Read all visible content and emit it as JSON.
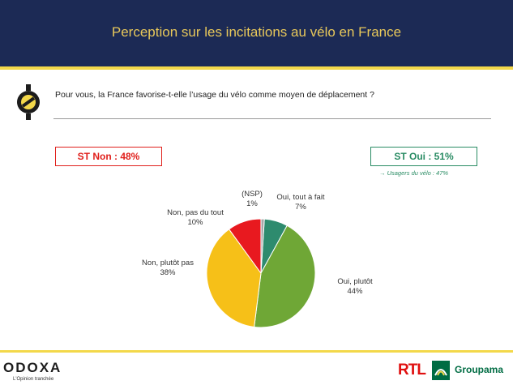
{
  "header": {
    "title": "Perception sur les incitations au vélo en France"
  },
  "question": "Pour vous, la France favorise-t-elle l’usage du vélo comme moyen de déplacement ?",
  "summary": {
    "st_non": "ST Non : 48%",
    "st_oui": "ST Oui : 51%",
    "note": "→ Usagers du vélo : 47%"
  },
  "colors": {
    "header_bg": "#1c2a55",
    "accent": "#f3d84a",
    "non": "#e0201c",
    "oui": "#2a8c64"
  },
  "chart_data": {
    "type": "pie",
    "title": "",
    "slices": [
      {
        "label_lines": [
          "Oui, tout à fait",
          "7%"
        ],
        "value": 7,
        "color": "#2e8b6e"
      },
      {
        "label_lines": [
          "Oui, plutôt",
          "44%"
        ],
        "value": 44,
        "color": "#6fa736"
      },
      {
        "label_lines": [
          "Non, plutôt pas",
          "38%"
        ],
        "value": 38,
        "color": "#f6c018"
      },
      {
        "label_lines": [
          "Non, pas du tout",
          "10%"
        ],
        "value": 10,
        "color": "#e8191f"
      },
      {
        "label_lines": [
          "(NSP)",
          "1%"
        ],
        "value": 1,
        "color": "#a7a7a7"
      }
    ]
  },
  "footer": {
    "brand": "ODOXA",
    "tagline": "L'Opinion tranchée",
    "partner1": "RTL",
    "partner2": "Groupama"
  }
}
